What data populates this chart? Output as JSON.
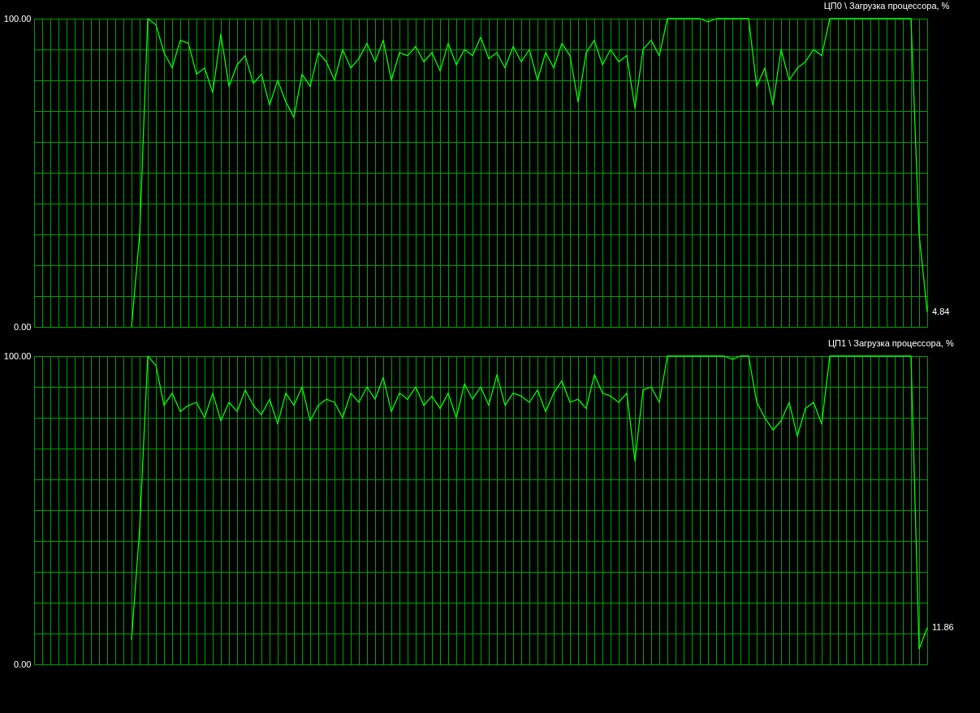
{
  "chart_data": [
    {
      "type": "line",
      "title": "ЦП0 \\ Загрузка процессора, %",
      "ylim": [
        0,
        100
      ],
      "categories": [
        null,
        null,
        null,
        null,
        null,
        null,
        null,
        null,
        null,
        null,
        null,
        null,
        null,
        null,
        null,
        null,
        null,
        null,
        null,
        null,
        null,
        null,
        null,
        null,
        null,
        null,
        null,
        null,
        null,
        null,
        null,
        null,
        null,
        null,
        null,
        null,
        null,
        null,
        null,
        null,
        null,
        null,
        null,
        null,
        null,
        null,
        null,
        null,
        null,
        null,
        null,
        null,
        null,
        null,
        null,
        null,
        null,
        null,
        null,
        null,
        null,
        null,
        null,
        null,
        null,
        null,
        null,
        null,
        null,
        null,
        null,
        null,
        null,
        null,
        null,
        null,
        null,
        null,
        null,
        null,
        null,
        null,
        null,
        null,
        null,
        null,
        null,
        null,
        null,
        null,
        null,
        null,
        null,
        null,
        null,
        null,
        null,
        null,
        null,
        null,
        null,
        null,
        null,
        null,
        null,
        null,
        null,
        null,
        null,
        null,
        null
      ],
      "yticks": [
        {
          "value": 0,
          "label": "0.00"
        },
        {
          "value": 10,
          "label": null
        },
        {
          "value": 20,
          "label": null
        },
        {
          "value": 30,
          "label": null
        },
        {
          "value": 40,
          "label": null
        },
        {
          "value": 50,
          "label": null
        },
        {
          "value": 60,
          "label": null
        },
        {
          "value": 70,
          "label": null
        },
        {
          "value": 80,
          "label": null
        },
        {
          "value": 90,
          "label": null
        },
        {
          "value": 100,
          "label": "100.00"
        }
      ],
      "tick_labels": "y",
      "grid": true,
      "series": [
        {
          "color": "#00ff00",
          "values": [
            null,
            null,
            null,
            null,
            null,
            null,
            null,
            null,
            null,
            null,
            null,
            null,
            0,
            30,
            100,
            98,
            89,
            84,
            93,
            92,
            82,
            84,
            76,
            95,
            78,
            85,
            88,
            79,
            82,
            72,
            80,
            73,
            68,
            82,
            78,
            89,
            86,
            80,
            90,
            84,
            87,
            92,
            86,
            93,
            80,
            89,
            88,
            91,
            86,
            89,
            83,
            92,
            85,
            90,
            88,
            94,
            87,
            89,
            84,
            91,
            86,
            90,
            80,
            89,
            84,
            92,
            88,
            73,
            89,
            93,
            85,
            90,
            86,
            88,
            71,
            90,
            93,
            88,
            100,
            100,
            100,
            100,
            100,
            99,
            100,
            100,
            100,
            100,
            100,
            78,
            84,
            72,
            90,
            80,
            84,
            86,
            90,
            88,
            100,
            100,
            100,
            100,
            100,
            100,
            100,
            100,
            100,
            100,
            100,
            30,
            4.84
          ],
          "value_labels": [
            null,
            null,
            null,
            null,
            null,
            null,
            null,
            null,
            null,
            null,
            null,
            null,
            null,
            null,
            null,
            null,
            null,
            null,
            null,
            null,
            null,
            null,
            null,
            null,
            null,
            null,
            null,
            null,
            null,
            null,
            null,
            null,
            null,
            null,
            null,
            null,
            null,
            null,
            null,
            null,
            null,
            null,
            null,
            null,
            null,
            null,
            null,
            null,
            null,
            null,
            null,
            null,
            null,
            null,
            null,
            null,
            null,
            null,
            null,
            null,
            null,
            null,
            null,
            null,
            null,
            null,
            null,
            null,
            null,
            null,
            null,
            null,
            null,
            null,
            null,
            null,
            null,
            null,
            null,
            null,
            null,
            null,
            null,
            null,
            null,
            null,
            null,
            null,
            null,
            null,
            null,
            null,
            null,
            null,
            null,
            null,
            null,
            null,
            null,
            null,
            null,
            null,
            null,
            null,
            null,
            null,
            null,
            null,
            null,
            null,
            "4.84"
          ]
        }
      ]
    },
    {
      "type": "line",
      "title": "ЦП1 \\ Загрузка процессора, %",
      "ylim": [
        0,
        100
      ],
      "categories": [
        null,
        null,
        null,
        null,
        null,
        null,
        null,
        null,
        null,
        null,
        null,
        null,
        null,
        null,
        null,
        null,
        null,
        null,
        null,
        null,
        null,
        null,
        null,
        null,
        null,
        null,
        null,
        null,
        null,
        null,
        null,
        null,
        null,
        null,
        null,
        null,
        null,
        null,
        null,
        null,
        null,
        null,
        null,
        null,
        null,
        null,
        null,
        null,
        null,
        null,
        null,
        null,
        null,
        null,
        null,
        null,
        null,
        null,
        null,
        null,
        null,
        null,
        null,
        null,
        null,
        null,
        null,
        null,
        null,
        null,
        null,
        null,
        null,
        null,
        null,
        null,
        null,
        null,
        null,
        null,
        null,
        null,
        null,
        null,
        null,
        null,
        null,
        null,
        null,
        null,
        null,
        null,
        null,
        null,
        null,
        null,
        null,
        null,
        null,
        null,
        null,
        null,
        null,
        null,
        null,
        null,
        null,
        null,
        null,
        null,
        null
      ],
      "yticks": [
        {
          "value": 0,
          "label": "0.00"
        },
        {
          "value": 10,
          "label": null
        },
        {
          "value": 20,
          "label": null
        },
        {
          "value": 30,
          "label": null
        },
        {
          "value": 40,
          "label": null
        },
        {
          "value": 50,
          "label": null
        },
        {
          "value": 60,
          "label": null
        },
        {
          "value": 70,
          "label": null
        },
        {
          "value": 80,
          "label": null
        },
        {
          "value": 90,
          "label": null
        },
        {
          "value": 100,
          "label": "100.00"
        }
      ],
      "tick_labels": "y",
      "grid": true,
      "series": [
        {
          "color": "#00ff00",
          "values": [
            null,
            null,
            null,
            null,
            null,
            null,
            null,
            null,
            null,
            null,
            null,
            null,
            8,
            44,
            100,
            97,
            84,
            88,
            82,
            84,
            85,
            80,
            88,
            79,
            85,
            82,
            89,
            84,
            81,
            86,
            78,
            88,
            84,
            90,
            79,
            84,
            86,
            85,
            80,
            88,
            85,
            90,
            86,
            93,
            82,
            88,
            86,
            90,
            84,
            87,
            83,
            88,
            80,
            91,
            86,
            90,
            84,
            94,
            84,
            88,
            87,
            85,
            89,
            82,
            88,
            92,
            85,
            86,
            83,
            94,
            88,
            87,
            85,
            88,
            66,
            89,
            90,
            85,
            100,
            100,
            100,
            100,
            100,
            100,
            100,
            100,
            99,
            100,
            100,
            85,
            80,
            76,
            79,
            85,
            74,
            83,
            85,
            78,
            100,
            100,
            100,
            100,
            100,
            100,
            100,
            100,
            100,
            100,
            100,
            5,
            11.86
          ],
          "value_labels": [
            null,
            null,
            null,
            null,
            null,
            null,
            null,
            null,
            null,
            null,
            null,
            null,
            null,
            null,
            null,
            null,
            null,
            null,
            null,
            null,
            null,
            null,
            null,
            null,
            null,
            null,
            null,
            null,
            null,
            null,
            null,
            null,
            null,
            null,
            null,
            null,
            null,
            null,
            null,
            null,
            null,
            null,
            null,
            null,
            null,
            null,
            null,
            null,
            null,
            null,
            null,
            null,
            null,
            null,
            null,
            null,
            null,
            null,
            null,
            null,
            null,
            null,
            null,
            null,
            null,
            null,
            null,
            null,
            null,
            null,
            null,
            null,
            null,
            null,
            null,
            null,
            null,
            null,
            null,
            null,
            null,
            null,
            null,
            null,
            null,
            null,
            null,
            null,
            null,
            null,
            null,
            null,
            null,
            null,
            null,
            null,
            null,
            null,
            null,
            null,
            null,
            null,
            null,
            null,
            null,
            null,
            null,
            null,
            null,
            null,
            "11.86"
          ]
        }
      ]
    }
  ]
}
